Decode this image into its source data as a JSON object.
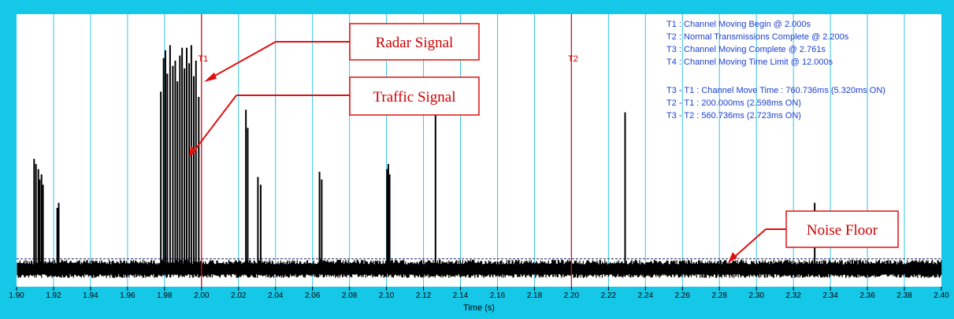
{
  "chart_data": {
    "type": "line",
    "xlabel": "Time (s)",
    "ylabel": "",
    "xlim": [
      1.9,
      2.4
    ],
    "ylim": [
      0,
      1
    ],
    "x_ticks": [
      "1.90",
      "1.92",
      "1.94",
      "1.96",
      "1.98",
      "2.00",
      "2.02",
      "2.04",
      "2.06",
      "2.08",
      "2.10",
      "2.12",
      "2.14",
      "2.16",
      "2.18",
      "2.20",
      "2.22",
      "2.24",
      "2.26",
      "2.28",
      "2.30",
      "2.32",
      "2.34",
      "2.36",
      "2.38",
      "2.40"
    ],
    "grid": "vertical",
    "noise_floor": 0.05,
    "pulses": [
      [
        1.9095,
        0.44
      ],
      [
        1.9105,
        0.42
      ],
      [
        1.9118,
        0.4
      ],
      [
        1.9125,
        0.36
      ],
      [
        1.9135,
        0.38
      ],
      [
        1.9143,
        0.34
      ],
      [
        1.922,
        0.25
      ],
      [
        1.9228,
        0.27
      ],
      [
        1.978,
        0.7
      ],
      [
        1.9795,
        0.83
      ],
      [
        1.9805,
        0.86
      ],
      [
        1.9815,
        0.77
      ],
      [
        1.983,
        0.88
      ],
      [
        1.9845,
        0.8
      ],
      [
        1.9858,
        0.82
      ],
      [
        1.987,
        0.74
      ],
      [
        1.9883,
        0.84
      ],
      [
        1.9895,
        0.87
      ],
      [
        1.9908,
        0.79
      ],
      [
        1.992,
        0.87
      ],
      [
        1.9933,
        0.81
      ],
      [
        1.9945,
        0.88
      ],
      [
        1.9958,
        0.76
      ],
      [
        1.997,
        0.82
      ],
      [
        1.9985,
        0.68
      ],
      [
        2.024,
        0.63
      ],
      [
        2.025,
        0.56
      ],
      [
        2.0305,
        0.37
      ],
      [
        2.032,
        0.34
      ],
      [
        2.0638,
        0.39
      ],
      [
        2.065,
        0.36
      ],
      [
        2.1003,
        0.4
      ],
      [
        2.101,
        0.42
      ],
      [
        2.1017,
        0.38
      ],
      [
        2.1265,
        0.65
      ],
      [
        2.229,
        0.62
      ],
      [
        2.3315,
        0.27
      ]
    ],
    "markers": [
      {
        "label": "T1",
        "x": 2.0
      },
      {
        "label": "T2",
        "x": 2.2
      }
    ],
    "annotations": [
      "T1 : Channel Moving Begin @ 2.000s",
      "T2 : Normal Transmissions Complete @ 2.200s",
      "T3 : Channel Moving Complete @ 2.761s",
      "T4 : Channel Moving Time Limit @ 12.000s",
      "T3 - T1 : Channel Move Time : 760.736ms (5.320ms ON)",
      "T2 - T1 : 200.000ms (2.598ms ON)",
      "T3 - T2 : 560.736ms (2.723ms ON)"
    ],
    "callouts": [
      {
        "label": "Radar Signal",
        "target_x": 2.001,
        "target_y": 0.86
      },
      {
        "label": "Traffic Signal",
        "target_x": 1.9935,
        "target_y": 0.58
      },
      {
        "label": "Noise Floor",
        "target_x": 2.285,
        "target_y": 0.06
      }
    ]
  },
  "colors": {
    "frame": "#16c8e8",
    "grid": "#35c5e6",
    "signal": "#000000",
    "marker": "#e01010",
    "callout": "#e01010",
    "annotation_text": "#1b3fd1",
    "noise_floor_line": "#1f2a6b"
  }
}
